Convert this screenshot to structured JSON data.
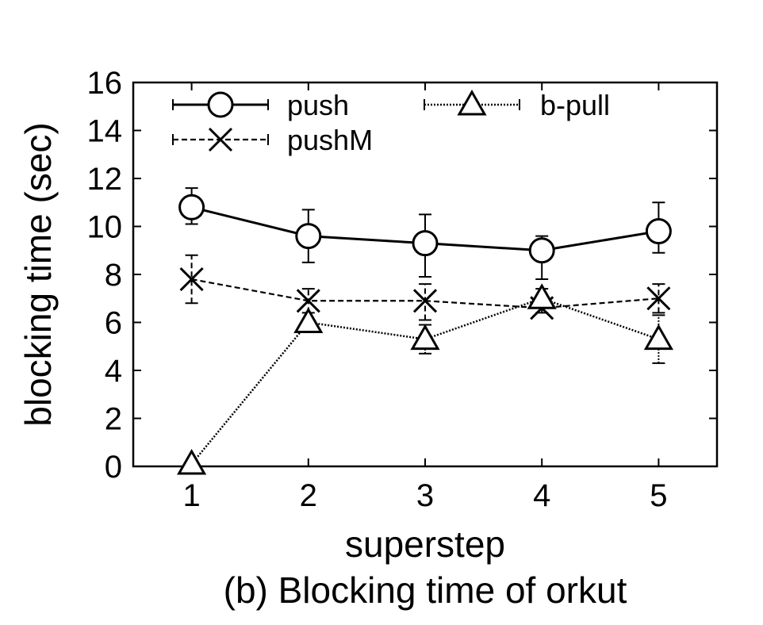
{
  "caption": "(b) Blocking time of orkut",
  "chart_data": {
    "type": "line",
    "title": "",
    "xlabel": "superstep",
    "ylabel": "blocking time (sec)",
    "x": [
      1,
      2,
      3,
      4,
      5
    ],
    "xticks": [
      "1",
      "2",
      "3",
      "4",
      "5"
    ],
    "yticks": [
      "0",
      "2",
      "4",
      "6",
      "8",
      "10",
      "12",
      "14",
      "16"
    ],
    "xlim": [
      0.5,
      5.5
    ],
    "ylim": [
      0,
      16
    ],
    "grid": false,
    "legend_position": "top",
    "series": [
      {
        "name": "push",
        "marker": "circle",
        "line_style": "solid",
        "values": [
          10.8,
          9.6,
          9.3,
          9.0,
          9.8
        ],
        "err_low": [
          10.1,
          8.5,
          7.9,
          7.8,
          8.9
        ],
        "err_high": [
          11.6,
          10.7,
          10.5,
          9.6,
          11.0
        ]
      },
      {
        "name": "pushM",
        "marker": "x",
        "line_style": "dashed",
        "values": [
          7.8,
          6.9,
          6.9,
          6.6,
          7.0
        ],
        "err_low": [
          6.8,
          6.4,
          6.1,
          6.4,
          6.4
        ],
        "err_high": [
          8.8,
          7.4,
          7.6,
          7.0,
          7.6
        ]
      },
      {
        "name": "b-pull",
        "marker": "triangle",
        "line_style": "dotted",
        "values": [
          0.1,
          6.0,
          5.3,
          7.0,
          5.3
        ],
        "err_low": [
          0.0,
          5.9,
          4.7,
          6.6,
          4.3
        ],
        "err_high": [
          0.2,
          6.1,
          5.9,
          7.4,
          6.3
        ]
      }
    ]
  }
}
